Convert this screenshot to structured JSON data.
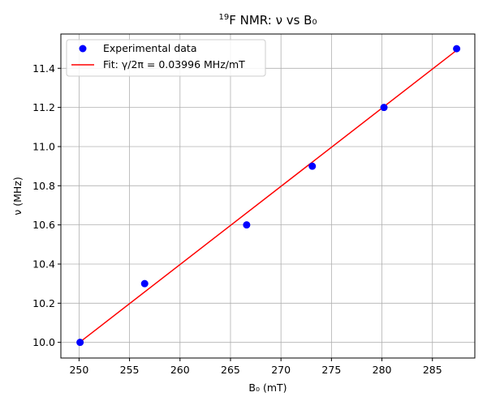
{
  "chart_data": {
    "type": "scatter",
    "title_base": "F NMR: ν vs B₀",
    "title_sup": "19",
    "xlabel": "B₀ (mT)",
    "ylabel": "ν (MHz)",
    "xlim": [
      248.2,
      289.2
    ],
    "ylim": [
      9.92,
      11.575
    ],
    "xticks": [
      250,
      255,
      260,
      265,
      270,
      275,
      280,
      285
    ],
    "yticks": [
      10.0,
      10.2,
      10.4,
      10.6,
      10.8,
      11.0,
      11.2,
      11.4
    ],
    "grid": true,
    "legend_position": "top-left",
    "series": [
      {
        "name": "Experimental data",
        "kind": "scatter",
        "color": "#0000ff",
        "x": [
          250.1,
          256.5,
          266.6,
          273.1,
          280.2,
          287.4
        ],
        "y": [
          10.0,
          10.3,
          10.6,
          10.9,
          11.2,
          11.5
        ]
      },
      {
        "name": "Fit: γ/2π = 0.03996 MHz/mT",
        "kind": "line",
        "color": "#ff0000",
        "x": [
          250.1,
          287.4
        ],
        "y": [
          10.002,
          11.492
        ]
      }
    ]
  }
}
